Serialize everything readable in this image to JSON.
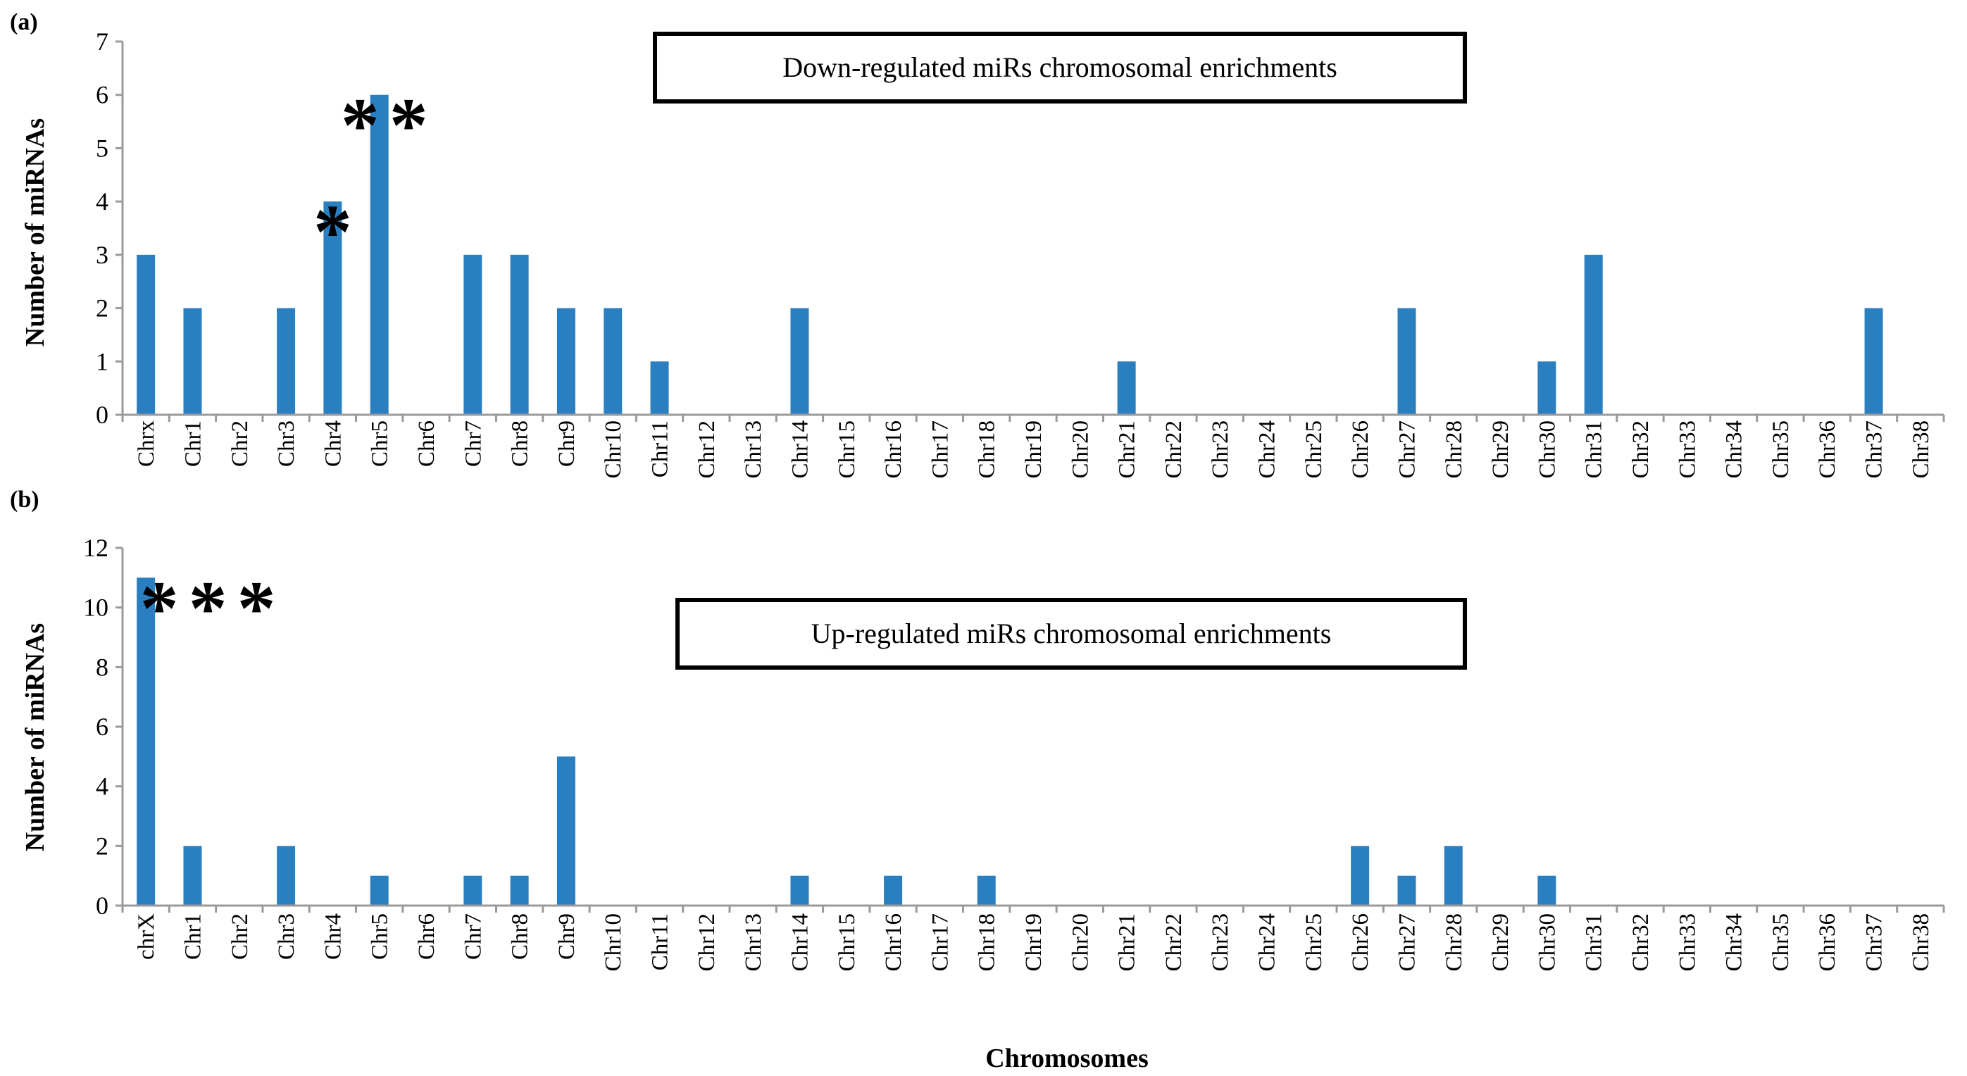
{
  "bar_color": "#2a7fc1",
  "xlabel": "Chromosomes",
  "chart_data": [
    {
      "type": "bar",
      "panel_label": "(a)",
      "title": "Down-regulated miRs chromosomal enrichments",
      "ylabel": "Number of miRNAs",
      "ylim": [
        0,
        7
      ],
      "yticks": [
        0,
        1,
        2,
        3,
        4,
        5,
        6,
        7
      ],
      "categories": [
        "Chrx",
        "Chr1",
        "Chr2",
        "Chr3",
        "Chr4",
        "Chr5",
        "Chr6",
        "Chr7",
        "Chr8",
        "Chr9",
        "Chr10",
        "Chr11",
        "Chr12",
        "Chr13",
        "Chr14",
        "Chr15",
        "Chr16",
        "Chr17",
        "Chr18",
        "Chr19",
        "Chr20",
        "Chr21",
        "Chr22",
        "Chr23",
        "Chr24",
        "Chr25",
        "Chr26",
        "Chr27",
        "Chr28",
        "Chr29",
        "Chr30",
        "Chr31",
        "Chr32",
        "Chr33",
        "Chr34",
        "Chr35",
        "Chr36",
        "Chr37",
        "Chr38"
      ],
      "values": [
        3,
        2,
        0,
        2,
        4,
        6,
        0,
        3,
        3,
        2,
        2,
        1,
        0,
        0,
        2,
        0,
        0,
        0,
        0,
        0,
        0,
        1,
        0,
        0,
        0,
        0,
        0,
        2,
        0,
        0,
        1,
        3,
        0,
        0,
        0,
        0,
        0,
        2,
        0
      ],
      "annotations": [
        {
          "category": "Chr4",
          "text": "*"
        },
        {
          "category": "Chr5",
          "text": "**"
        }
      ]
    },
    {
      "type": "bar",
      "panel_label": "(b)",
      "title": "Up-regulated miRs chromosomal enrichments",
      "ylabel": "Number of miRNAs",
      "ylim": [
        0,
        12
      ],
      "yticks": [
        0,
        2,
        4,
        6,
        8,
        10,
        12
      ],
      "categories": [
        "chrX",
        "Chr1",
        "Chr2",
        "Chr3",
        "Chr4",
        "Chr5",
        "Chr6",
        "Chr7",
        "Chr8",
        "Chr9",
        "Chr10",
        "Chr11",
        "Chr12",
        "Chr13",
        "Chr14",
        "Chr15",
        "Chr16",
        "Chr17",
        "Chr18",
        "Chr19",
        "Chr20",
        "Chr21",
        "Chr22",
        "Chr23",
        "Chr24",
        "Chr25",
        "Chr26",
        "Chr27",
        "Chr28",
        "Chr29",
        "Chr30",
        "Chr31",
        "Chr32",
        "Chr33",
        "Chr34",
        "Chr35",
        "Chr36",
        "Chr37",
        "Chr38"
      ],
      "values": [
        11,
        2,
        0,
        2,
        0,
        1,
        0,
        1,
        1,
        5,
        0,
        0,
        0,
        0,
        1,
        0,
        1,
        0,
        1,
        0,
        0,
        0,
        0,
        0,
        0,
        0,
        2,
        1,
        2,
        0,
        1,
        0,
        0,
        0,
        0,
        0,
        0,
        0,
        0
      ],
      "annotations": [
        {
          "category": "chrX",
          "text": "***"
        }
      ]
    }
  ]
}
